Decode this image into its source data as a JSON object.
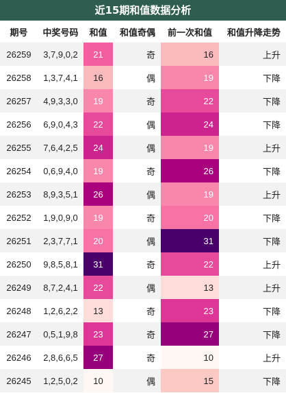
{
  "title": "近15期和值数据分析",
  "table": {
    "header": [
      "期号",
      "中奖号码",
      "和值",
      "和值奇偶",
      "前一次和值",
      "和值升降走势"
    ],
    "rows": [
      [
        "26259",
        "3,7,9,0,2",
        21,
        "奇",
        16,
        "上升"
      ],
      [
        "26258",
        "1,3,7,4,1",
        16,
        "偶",
        19,
        "下降"
      ],
      [
        "26257",
        "4,9,3,3,0",
        19,
        "奇",
        22,
        "下降"
      ],
      [
        "26256",
        "6,9,0,4,3",
        22,
        "偶",
        24,
        "下降"
      ],
      [
        "26255",
        "7,6,4,2,5",
        24,
        "偶",
        19,
        "上升"
      ],
      [
        "26254",
        "0,6,9,4,0",
        19,
        "奇",
        26,
        "下降"
      ],
      [
        "26253",
        "8,9,3,5,1",
        26,
        "偶",
        19,
        "上升"
      ],
      [
        "26252",
        "1,9,0,9,0",
        19,
        "奇",
        20,
        "下降"
      ],
      [
        "26251",
        "2,3,7,7,1",
        20,
        "偶",
        31,
        "下降"
      ],
      [
        "26250",
        "9,8,5,8,1",
        31,
        "奇",
        22,
        "上升"
      ],
      [
        "26249",
        "8,7,2,4,1",
        22,
        "偶",
        13,
        "上升"
      ],
      [
        "26248",
        "1,2,6,2,2",
        13,
        "奇",
        23,
        "下降"
      ],
      [
        "26247",
        "0,5,1,9,8",
        23,
        "奇",
        27,
        "下降"
      ],
      [
        "26246",
        "2,8,6,6,5",
        27,
        "奇",
        10,
        "上升"
      ],
      [
        "26245",
        "1,2,5,0,2",
        10,
        "偶",
        15,
        "下降"
      ]
    ]
  }
}
